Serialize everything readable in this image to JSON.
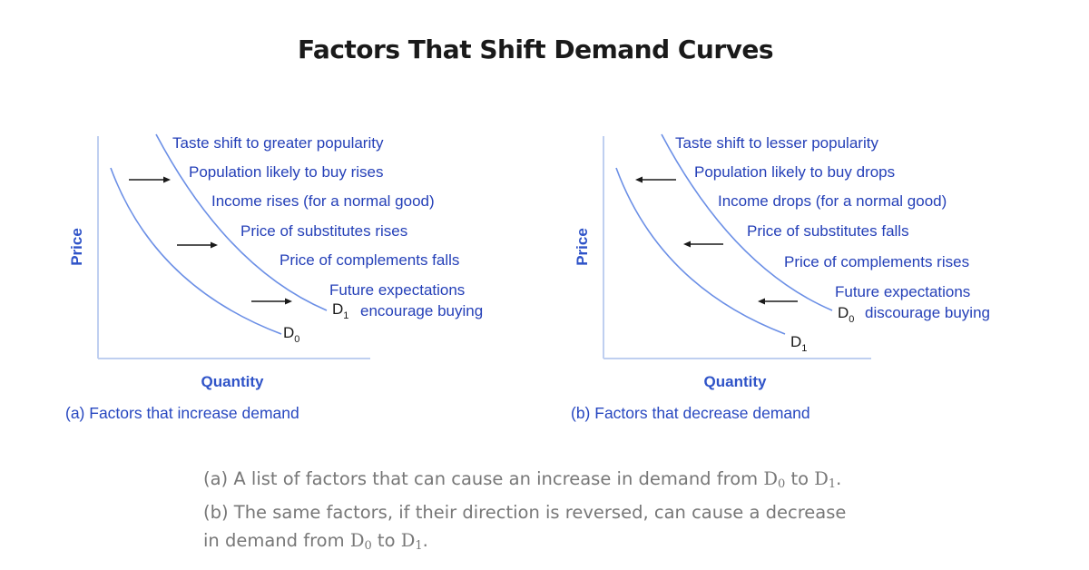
{
  "title": "Factors That Shift Demand Curves",
  "panels": [
    {
      "id": "a",
      "y_axis_label": "Price",
      "x_axis_label": "Quantity",
      "caption": "(a) Factors that increase demand",
      "factors": [
        "Taste shift to greater popularity",
        "Population likely to buy rises",
        "Income rises (for a normal good)",
        "Price of substitutes rises",
        "Price of complements falls",
        "Future expectations",
        "encourage buying"
      ],
      "curve_labels": [
        {
          "main": "D",
          "sub": "0"
        },
        {
          "main": "D",
          "sub": "1"
        }
      ],
      "shift_direction": "right"
    },
    {
      "id": "b",
      "y_axis_label": "Price",
      "x_axis_label": "Quantity",
      "caption": "(b) Factors that decrease demand",
      "factors": [
        "Taste shift to lesser popularity",
        "Population likely to buy drops",
        "Income drops (for a normal good)",
        "Price of substitutes falls",
        "Price of complements rises",
        "Future expectations",
        "discourage buying"
      ],
      "curve_labels": [
        {
          "main": "D",
          "sub": "0"
        },
        {
          "main": "D",
          "sub": "1"
        }
      ],
      "shift_direction": "left"
    }
  ],
  "caption": {
    "part1": "(a) A list of factors that can cause an increase in demand from ",
    "d0": "D",
    "d0_sub": "0",
    "to1": " to ",
    "d1": "D",
    "d1_sub": "1",
    "part2": ". (b) The same factors, if their direction is reversed, can cause a decrease in demand from ",
    "to2": " to ",
    "end": "."
  },
  "colors": {
    "curve": "#6b8fe6",
    "text_blue": "#2540b8",
    "axis": "#bfcff0",
    "arrow": "#1a1a1a"
  }
}
